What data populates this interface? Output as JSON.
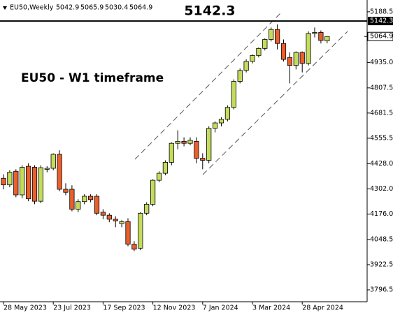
{
  "header": {
    "symbol": "EU50,Weekly"
  },
  "chart_data": {
    "type": "candlestick",
    "level": 5142.3,
    "annotation": "EU50 - W1 timeframe",
    "up_color": "#c4dc5c",
    "down_color": "#e8602c",
    "level_color": "#000000",
    "categories": [
      "28 May 2023",
      null,
      null,
      null,
      null,
      null,
      null,
      null,
      "23 Jul 2023",
      null,
      null,
      null,
      null,
      null,
      null,
      null,
      "17 Sep 2023",
      null,
      null,
      null,
      null,
      null,
      null,
      null,
      "12 Nov 2023",
      null,
      null,
      null,
      null,
      null,
      null,
      null,
      "7 Jan 2024",
      null,
      null,
      null,
      null,
      null,
      null,
      null,
      "3 Mar 2024",
      null,
      null,
      null,
      null,
      null,
      null,
      null,
      "28 Apr 2024",
      null,
      null,
      null,
      null
    ],
    "open": [
      4355,
      4322,
      4390,
      4272,
      4415,
      4410,
      4240,
      4400,
      4405,
      4475,
      4300,
      4300,
      4200,
      4238,
      4265,
      4265,
      4185,
      4170,
      4150,
      4128,
      4138,
      4025,
      4005,
      4180,
      4225,
      4345,
      4380,
      4435,
      4530,
      4540,
      4530,
      4540,
      4455,
      4445,
      4605,
      4632,
      4650,
      4710,
      4840,
      4895,
      4940,
      4970,
      5005,
      5050,
      5100,
      5030,
      4960,
      4920,
      4985,
      4930,
      5080,
      5085,
      5042.9
    ],
    "high": [
      4375,
      4395,
      4400,
      4420,
      4430,
      4420,
      4420,
      4415,
      4480,
      4495,
      4330,
      4320,
      4250,
      4275,
      4275,
      4275,
      4200,
      4180,
      4165,
      4145,
      4155,
      4040,
      4185,
      4235,
      4350,
      4390,
      4445,
      4535,
      4595,
      4560,
      4560,
      4560,
      4480,
      4615,
      4640,
      4660,
      4720,
      4850,
      4905,
      4950,
      4975,
      5010,
      5055,
      5110,
      5125,
      5050,
      4985,
      4990,
      4990,
      5090,
      5110,
      5095,
      5065.9
    ],
    "low": [
      4300,
      4310,
      4260,
      4255,
      4240,
      4225,
      4230,
      4385,
      4395,
      4290,
      4270,
      4190,
      4185,
      4225,
      4235,
      4170,
      4150,
      4135,
      4110,
      4110,
      4015,
      3990,
      3995,
      4170,
      4215,
      4335,
      4370,
      4420,
      4500,
      4515,
      4520,
      4430,
      4400,
      4430,
      4585,
      4615,
      4640,
      4700,
      4830,
      4885,
      4930,
      4960,
      4995,
      5040,
      5000,
      4940,
      4830,
      4900,
      4885,
      4920,
      5060,
      5030,
      5030.4
    ],
    "close": [
      4322,
      4385,
      4272,
      4410,
      4252,
      4240,
      4408,
      4405,
      4475,
      4300,
      4285,
      4200,
      4238,
      4265,
      4248,
      4180,
      4170,
      4150,
      4142,
      4138,
      4025,
      4000,
      4180,
      4225,
      4345,
      4380,
      4435,
      4530,
      4540,
      4530,
      4545,
      4455,
      4445,
      4605,
      4632,
      4650,
      4710,
      4840,
      4895,
      4940,
      4970,
      5005,
      5050,
      5100,
      5030,
      4950,
      4920,
      4985,
      4930,
      5080,
      5085,
      5045,
      5064.9
    ],
    "ylim": [
      3737,
      5230
    ],
    "yticks": [
      3796.5,
      3922.5,
      4048.5,
      {
        "value": 4176,
        "label": "4176.0"
      },
      {
        "value": 4302,
        "label": "4302.0"
      },
      {
        "value": 4428,
        "label": "4428.0"
      },
      4555.5,
      4681.5,
      4807.5,
      {
        "value": 4935,
        "label": "4935.0"
      },
      5188.5
    ]
  }
}
